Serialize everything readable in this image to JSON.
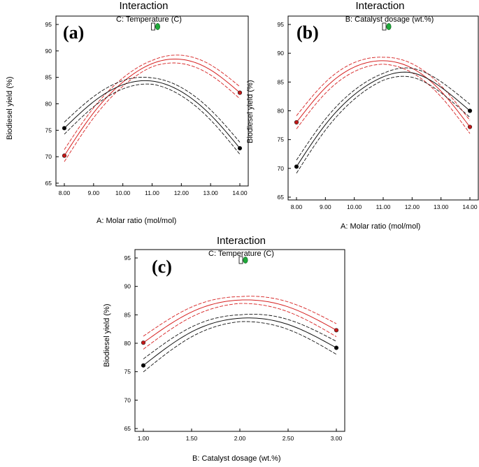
{
  "chart_data": [
    {
      "type": "line",
      "panel_label": "(a)",
      "title": "Interaction",
      "subtitle": "C: Temperature (C)",
      "xlabel": "A: Molar ratio (mol/mol)",
      "ylabel": "Biodiesel yield (%)",
      "xlim": [
        8,
        14
      ],
      "ylim": [
        65,
        95
      ],
      "xticks": [
        "8.00",
        "9.00",
        "10.00",
        "11.00",
        "12.00",
        "13.00",
        "14.00"
      ],
      "yticks": [
        "65",
        "70",
        "75",
        "80",
        "85",
        "90",
        "95"
      ],
      "legend_position": "top-center",
      "series": [
        {
          "color": "#d62020",
          "x": [
            8,
            9,
            10,
            11,
            12,
            13,
            14
          ],
          "values": [
            70.2,
            78.3,
            84.1,
            87.6,
            88.4,
            86.4,
            82.1
          ],
          "band": 0.6
        },
        {
          "color": "#111111",
          "x": [
            8,
            9,
            10,
            11,
            12,
            13,
            14
          ],
          "values": [
            75.4,
            80.4,
            83.6,
            84.3,
            82.3,
            77.9,
            71.6
          ],
          "band": 0.6
        }
      ]
    },
    {
      "type": "line",
      "panel_label": "(b)",
      "title": "Interaction",
      "subtitle": "B: Catalyst dosage (wt.%)",
      "xlabel": "A: Molar ratio (mol/mol)",
      "ylabel": "Biodiesel yield (%)",
      "xlim": [
        8,
        14
      ],
      "ylim": [
        65,
        95
      ],
      "xticks": [
        "8.00",
        "9.00",
        "10.00",
        "11.00",
        "12.00",
        "13.00",
        "14.00"
      ],
      "yticks": [
        "65",
        "70",
        "75",
        "80",
        "85",
        "90",
        "95"
      ],
      "legend_position": "top-center",
      "series": [
        {
          "color": "#d62020",
          "x": [
            8,
            9,
            10,
            11,
            12,
            13,
            14
          ],
          "values": [
            78.0,
            84.0,
            87.6,
            88.7,
            87.4,
            83.4,
            77.2
          ],
          "band": 0.6
        },
        {
          "color": "#111111",
          "x": [
            8,
            9,
            10,
            11,
            12,
            13,
            14
          ],
          "values": [
            70.3,
            77.6,
            82.8,
            85.9,
            86.6,
            84.1,
            80.0
          ],
          "band": 0.6
        }
      ]
    },
    {
      "type": "line",
      "panel_label": "(c)",
      "title": "Interaction",
      "subtitle": "C: Temperature (C)",
      "xlabel": "B: Catalyst dosage (wt.%)",
      "ylabel": "Biodiesel yield (%)",
      "xlim": [
        1,
        3
      ],
      "ylim": [
        65,
        95
      ],
      "xticks": [
        "1.00",
        "1.50",
        "2.00",
        "2.50",
        "3.00"
      ],
      "yticks": [
        "65",
        "70",
        "75",
        "80",
        "85",
        "90",
        "95"
      ],
      "legend_position": "top-center",
      "series": [
        {
          "color": "#d62020",
          "x": [
            1,
            1.5,
            2,
            2.5,
            3
          ],
          "values": [
            80.1,
            85.5,
            87.6,
            86.4,
            82.3
          ],
          "band": 0.6
        },
        {
          "color": "#111111",
          "x": [
            1,
            1.5,
            2,
            2.5,
            3
          ],
          "values": [
            76.1,
            82.0,
            84.4,
            83.3,
            79.2
          ],
          "band": 0.6
        }
      ]
    }
  ]
}
